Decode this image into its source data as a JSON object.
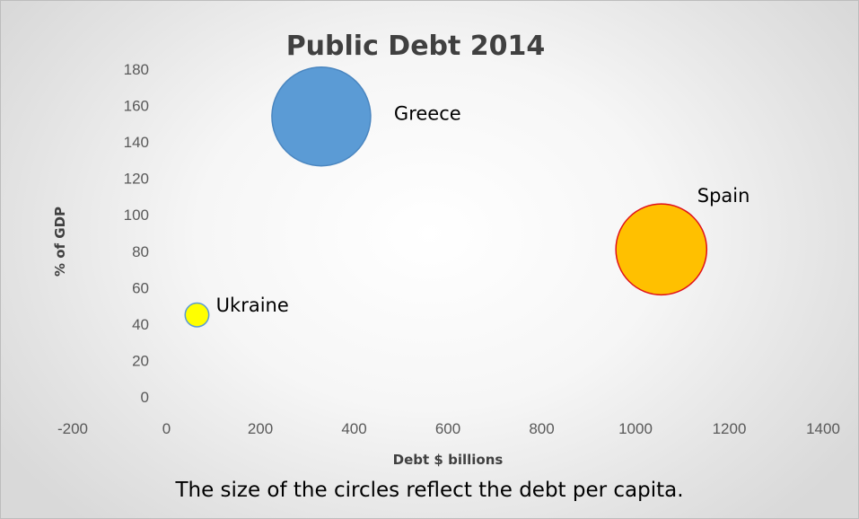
{
  "chart_data": {
    "type": "bubble",
    "title": "Public Debt 2014",
    "xlabel": "Debt $ billions",
    "ylabel": "% of GDP",
    "xlim": [
      -200,
      1400
    ],
    "ylim": [
      0,
      180
    ],
    "xticks": [
      -200,
      0,
      200,
      400,
      600,
      800,
      1000,
      1200,
      1400
    ],
    "yticks": [
      0,
      20,
      40,
      60,
      80,
      100,
      120,
      140,
      160,
      180
    ],
    "grid": false,
    "legend": "none",
    "series": [
      {
        "label": "Greece",
        "x": 330,
        "y": 154,
        "size": 26000,
        "color": "#5b9bd5",
        "stroke": "#4a86c0"
      },
      {
        "label": "Spain",
        "x": 1055,
        "y": 81,
        "size": 22000,
        "color": "#ffc000",
        "stroke": "#e0101a"
      },
      {
        "label": "Ukraine",
        "x": 65,
        "y": 45,
        "size": 1500,
        "color": "#ffff00",
        "stroke": "#5b9bd5"
      }
    ]
  },
  "caption": "The size of the circles reflect the debt per capita."
}
